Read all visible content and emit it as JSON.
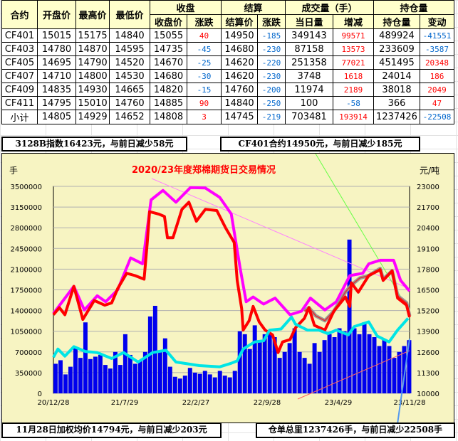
{
  "table": {
    "group_headers": {
      "close": "收盘",
      "settle": "结算",
      "volume": "成交量（手）",
      "oi": "持仓量"
    },
    "headers": [
      "合约",
      "开盘价",
      "最高价",
      "最低价",
      "收盘价",
      "涨跌",
      "结算价",
      "涨跌",
      "当日量",
      "增减",
      "持仓量",
      "变动"
    ],
    "rows": [
      [
        "CF401",
        "15015",
        "15175",
        "14840",
        "15055",
        "40",
        "14950",
        "-185",
        "349143",
        "99571",
        "489924",
        "-41551"
      ],
      [
        "CF403",
        "14780",
        "14870",
        "14595",
        "14735",
        "-45",
        "14680",
        "-230",
        "87158",
        "13573",
        "233609",
        "-3587"
      ],
      [
        "CF405",
        "14695",
        "14790",
        "14520",
        "14670",
        "-25",
        "14620",
        "-220",
        "251358",
        "77021",
        "451495",
        "20348"
      ],
      [
        "CF407",
        "14710",
        "14800",
        "14530",
        "14680",
        "-30",
        "14620",
        "-230",
        "3748",
        "1618",
        "24014",
        "186"
      ],
      [
        "CF409",
        "14835",
        "14930",
        "14665",
        "14820",
        "-15",
        "14760",
        "-200",
        "11974",
        "2189",
        "38018",
        "2049"
      ],
      [
        "CF411",
        "14795",
        "15010",
        "14760",
        "14885",
        "90",
        "14840",
        "-250",
        "100",
        "-58",
        "366",
        "47"
      ],
      [
        "小计",
        "14805",
        "14929",
        "14652",
        "14808",
        "3",
        "14745",
        "-219",
        "703481",
        "193914",
        "1237426",
        "-22508"
      ]
    ]
  },
  "notes": {
    "index": "3128B指数16423元，与前日减少58元",
    "contract": "CF401合约14950元，与前日减少185元",
    "weighted": "11月28日加权均价14794元，与前日减少203元",
    "warehouse": "仓单总里1237426手，与前日减少22508手"
  },
  "colors": {
    "up": "#ff0000",
    "down": "#0066cc",
    "index_line": "#ff00ff",
    "contract_line": "#ff0000",
    "other_line": "#999999",
    "oi_line": "#00e5e5",
    "volume_bar": "#0000ee",
    "chart_bg": "#f7f4c2"
  },
  "chart_data": {
    "type": "bar+line",
    "title": "2020/23年度郑棉期货日交易情况",
    "ylabel_left": "手",
    "ylabel_right": "元/吨",
    "ylim_left": [
      0,
      3500000
    ],
    "ylim_right": [
      10000,
      23000
    ],
    "yticks_left": [
      "3500000",
      "3150000",
      "2800000",
      "2450000",
      "2100000",
      "1750000",
      "1400000",
      "1050000",
      "700000",
      "350000",
      "0"
    ],
    "yticks_right": [
      "23000",
      "21700",
      "20400",
      "19100",
      "17800",
      "16500",
      "15200",
      "13900",
      "12600",
      "11300",
      "10000"
    ],
    "xticks": [
      "20/12/28",
      "21/7/29",
      "22/2/27",
      "22/9/28",
      "23/4/29",
      "23/11/28"
    ],
    "xlim_trading_days": [
      0,
      715
    ],
    "grid": true,
    "volume_bars": {
      "axis": "left",
      "step_days": 10,
      "values": [
        500000,
        560000,
        320000,
        450000,
        780000,
        600000,
        1200000,
        580000,
        620000,
        650000,
        480000,
        420000,
        700000,
        480000,
        1000000,
        650000,
        500000,
        560000,
        700000,
        1300000,
        1480000,
        700000,
        930000,
        450000,
        280000,
        250000,
        300000,
        430000,
        350000,
        330000,
        380000,
        320000,
        270000,
        380000,
        300000,
        270000,
        380000,
        1050000,
        1000000,
        750000,
        1150000,
        900000,
        1000000,
        1000000,
        950000,
        600000,
        700000,
        850000,
        1100000,
        700000,
        600000,
        500000,
        850000,
        700000,
        900000,
        1000000,
        950000,
        1100000,
        1050000,
        2600000,
        1100000,
        1000000,
        1200000,
        1000000,
        950000,
        800000,
        900000,
        800000,
        600000,
        700000,
        800000,
        900000
      ]
    },
    "lines": [
      {
        "key": "index",
        "axis": "right",
        "points": [
          [
            0,
            15012
          ],
          [
            41,
            16723
          ],
          [
            62,
            15236
          ],
          [
            88,
            16128
          ],
          [
            105,
            15756
          ],
          [
            129,
            16500
          ],
          [
            155,
            18508
          ],
          [
            179,
            18136
          ],
          [
            196,
            22152
          ],
          [
            220,
            22747
          ],
          [
            246,
            22003
          ],
          [
            275,
            22925
          ],
          [
            305,
            22896
          ],
          [
            334,
            22301
          ],
          [
            357,
            21260
          ],
          [
            375,
            17839
          ],
          [
            387,
            15756
          ],
          [
            401,
            16054
          ],
          [
            422,
            15608
          ],
          [
            445,
            15980
          ],
          [
            475,
            14938
          ],
          [
            498,
            15161
          ],
          [
            516,
            15980
          ],
          [
            545,
            15236
          ],
          [
            568,
            15756
          ],
          [
            595,
            17392
          ],
          [
            621,
            17541
          ],
          [
            633,
            18136
          ],
          [
            656,
            18359
          ],
          [
            683,
            18359
          ],
          [
            697,
            17095
          ],
          [
            715,
            16426
          ]
        ]
      },
      {
        "key": "other",
        "axis": "right",
        "points": [
          [
            504,
            15161
          ],
          [
            513,
            15384
          ],
          [
            527,
            14863
          ],
          [
            545,
            14566
          ],
          [
            563,
            15161
          ],
          [
            586,
            16351
          ],
          [
            598,
            16797
          ],
          [
            615,
            17243
          ],
          [
            633,
            17392
          ],
          [
            656,
            17839
          ],
          [
            662,
            17169
          ],
          [
            680,
            17690
          ],
          [
            691,
            16128
          ],
          [
            709,
            15682
          ],
          [
            715,
            14863
          ]
        ]
      },
      {
        "key": "contract",
        "axis": "right",
        "points": [
          [
            0,
            14938
          ],
          [
            12,
            15384
          ],
          [
            23,
            14938
          ],
          [
            41,
            16723
          ],
          [
            59,
            14641
          ],
          [
            82,
            15831
          ],
          [
            103,
            15533
          ],
          [
            117,
            15682
          ],
          [
            129,
            16574
          ],
          [
            147,
            17541
          ],
          [
            164,
            17392
          ],
          [
            182,
            17169
          ],
          [
            188,
            19326
          ],
          [
            193,
            21408
          ],
          [
            211,
            21260
          ],
          [
            223,
            21111
          ],
          [
            229,
            19772
          ],
          [
            240,
            19772
          ],
          [
            258,
            21557
          ],
          [
            272,
            22003
          ],
          [
            287,
            20813
          ],
          [
            305,
            21557
          ],
          [
            328,
            21483
          ],
          [
            346,
            20367
          ],
          [
            363,
            19475
          ],
          [
            369,
            17095
          ],
          [
            378,
            15310
          ],
          [
            381,
            13971
          ],
          [
            393,
            14566
          ],
          [
            401,
            15459
          ],
          [
            413,
            14492
          ],
          [
            425,
            13971
          ],
          [
            440,
            13674
          ],
          [
            451,
            12558
          ],
          [
            460,
            13228
          ],
          [
            475,
            13376
          ],
          [
            486,
            14120
          ],
          [
            504,
            14715
          ],
          [
            513,
            15384
          ],
          [
            524,
            14269
          ],
          [
            545,
            13971
          ],
          [
            563,
            15161
          ],
          [
            586,
            16054
          ],
          [
            595,
            15459
          ],
          [
            598,
            16946
          ],
          [
            612,
            16351
          ],
          [
            633,
            17392
          ],
          [
            656,
            17764
          ],
          [
            662,
            17095
          ],
          [
            680,
            17690
          ],
          [
            691,
            15980
          ],
          [
            709,
            15533
          ],
          [
            715,
            14789
          ]
        ]
      },
      {
        "key": "oi",
        "axis": "left",
        "points": [
          [
            0,
            610000
          ],
          [
            9,
            749000
          ],
          [
            23,
            629000
          ],
          [
            41,
            789000
          ],
          [
            64,
            709000
          ],
          [
            88,
            689000
          ],
          [
            117,
            589000
          ],
          [
            141,
            689000
          ],
          [
            170,
            529000
          ],
          [
            199,
            689000
          ],
          [
            226,
            729000
          ],
          [
            246,
            529000
          ],
          [
            293,
            469000
          ],
          [
            334,
            449000
          ],
          [
            357,
            509000
          ],
          [
            369,
            549000
          ],
          [
            381,
            749000
          ],
          [
            404,
            869000
          ],
          [
            422,
            889000
          ],
          [
            434,
            1069000
          ],
          [
            457,
            1089000
          ],
          [
            478,
            1289000
          ],
          [
            486,
            1169000
          ],
          [
            510,
            1069000
          ],
          [
            533,
            1069000
          ],
          [
            551,
            1009000
          ],
          [
            568,
            1069000
          ],
          [
            592,
            989000
          ],
          [
            604,
            1129000
          ],
          [
            633,
            1209000
          ],
          [
            650,
            969000
          ],
          [
            674,
            869000
          ],
          [
            691,
            1069000
          ],
          [
            712,
            1269000
          ]
        ]
      }
    ]
  }
}
